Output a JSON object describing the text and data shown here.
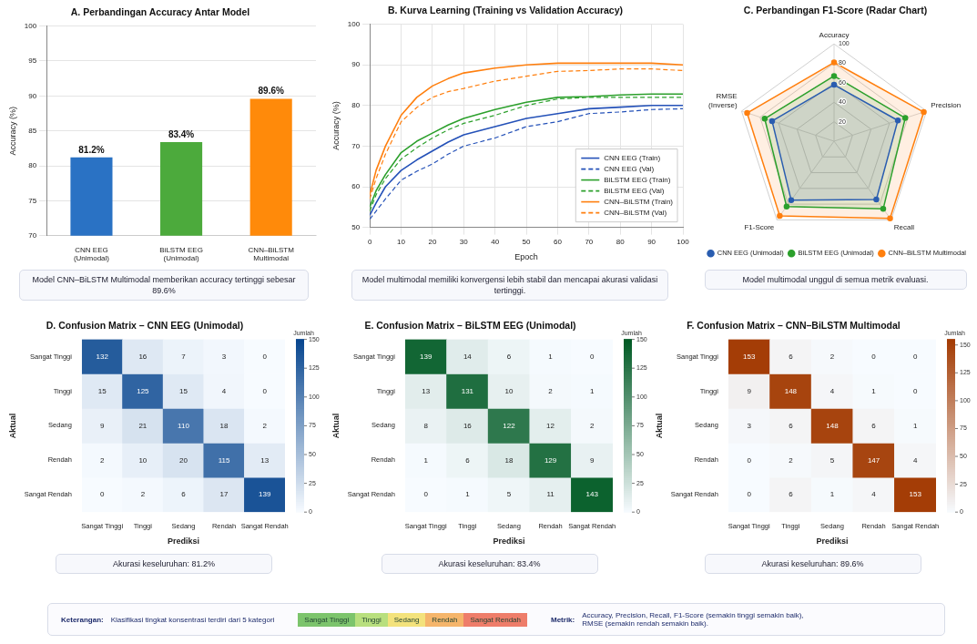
{
  "chart_data": [
    {
      "type": "bar",
      "title": "A. Perbandingan Accuracy Antar Model",
      "ylabel": "Accuracy (%)",
      "categories": [
        "CNN EEG\n(Unimodal)",
        "BiLSTM EEG\n(Unimodal)",
        "CNN–BiLSTM\nMultimodal"
      ],
      "values": [
        81.2,
        83.4,
        89.6
      ],
      "colors": [
        "#2a72c4",
        "#4caa3c",
        "#ff8a0a"
      ],
      "value_labels": [
        "81.2%",
        "83.4%",
        "89.6%"
      ],
      "ylim": [
        70,
        100
      ],
      "yticks": [
        70,
        75,
        80,
        85,
        90,
        95,
        100
      ],
      "grid": "y",
      "annotations": [
        "Model CNN–BiLSTM Multimodal memberikan accuracy tertinggi sebesar 89.6%"
      ]
    },
    {
      "type": "line",
      "title": "B. Kurva Learning (Training vs Validation Accuracy)",
      "xlabel": "Epoch",
      "ylabel": "Accuracy (%)",
      "x": [
        0,
        2,
        5,
        10,
        15,
        20,
        25,
        30,
        40,
        50,
        60,
        70,
        80,
        90,
        100
      ],
      "series": [
        {
          "name": "CNN EEG (Train)",
          "color": "#2451b8",
          "line_style": "solid",
          "values": [
            53,
            56,
            60,
            64,
            66.6,
            68.8,
            71,
            72.8,
            74.8,
            76.8,
            78,
            79.2,
            79.6,
            80,
            80
          ]
        },
        {
          "name": "CNN EEG (Val)",
          "color": "#2451b8",
          "line_style": "dashed",
          "values": [
            52,
            54,
            57,
            61.6,
            63.8,
            65.6,
            68,
            70,
            72,
            74.8,
            76,
            78,
            78.4,
            79,
            79.2
          ]
        },
        {
          "name": "BiLSTM EEG (Train)",
          "color": "#2ca02c",
          "line_style": "solid",
          "values": [
            55,
            59,
            63,
            68.4,
            71.2,
            73.2,
            75.2,
            76.8,
            79,
            80.8,
            82,
            82.2,
            82.6,
            82.8,
            82.8
          ]
        },
        {
          "name": "BiLSTM EEG (Val)",
          "color": "#2ca02c",
          "line_style": "dashed",
          "values": [
            54,
            58,
            62,
            66.8,
            69.6,
            72,
            74,
            75.6,
            77.6,
            80,
            81.6,
            82,
            82,
            82,
            82
          ]
        },
        {
          "name": "CNN–BiLSTM (Train)",
          "color": "#ff7f0e",
          "line_style": "solid",
          "values": [
            58,
            64,
            70,
            77.6,
            82,
            84.8,
            86.6,
            88,
            89.2,
            90,
            90.4,
            90.4,
            90.4,
            90.4,
            90
          ]
        },
        {
          "name": "CNN–BiLSTM (Val)",
          "color": "#ff7f0e",
          "line_style": "dashed",
          "values": [
            57,
            62,
            68,
            76,
            79.5,
            82,
            83.4,
            84.2,
            86,
            87.2,
            88.4,
            88.6,
            89,
            89,
            88.6
          ]
        }
      ],
      "xlim": [
        0,
        100
      ],
      "xticks": [
        0,
        10,
        20,
        30,
        40,
        50,
        60,
        70,
        80,
        90,
        100
      ],
      "ylim": [
        50,
        100
      ],
      "yticks": [
        50,
        60,
        70,
        80,
        90,
        100
      ],
      "grid": true,
      "legend": "bottom right",
      "annotations": [
        "Model multimodal memiliki konvergensi lebih stabil dan mencapai akurasi validasi tertinggi."
      ]
    },
    {
      "type": "radar",
      "title": "C. Perbandingan F1-Score (Radar Chart)",
      "categories": [
        "Accuracy",
        "Precision",
        "Recall",
        "F1-Score",
        "RMSE\n(Inverse)"
      ],
      "series": [
        {
          "name": "CNN EEG (Unimodal)",
          "color": "#2a5db0",
          "values": [
            58,
            69,
            74,
            75,
            67
          ]
        },
        {
          "name": "BiLSTM EEG (Unimodal)",
          "color": "#2ca02c",
          "values": [
            67,
            77,
            86,
            83,
            75
          ]
        },
        {
          "name": "CNN–BiLSTM Multimodal",
          "color": "#ff7f0e",
          "values": [
            81,
            97,
            98,
            95,
            94
          ]
        }
      ],
      "ylim": [
        0,
        100
      ],
      "yticks": [
        20,
        40,
        60,
        80,
        100
      ],
      "grid": true,
      "marker": "circle",
      "legend": "bottom right",
      "annotations": [
        "Model multimodal unggul di semua metrik evaluasi."
      ]
    },
    {
      "type": "heatmap",
      "title": "D. Confusion Matrix – CNN EEG (Unimodal)",
      "xlabel": "Prediksi",
      "ylabel": "Aktual",
      "clabel": "Jumlah",
      "categories": [
        "Sangat Tinggi",
        "Tinggi",
        "Sedang",
        "Rendah",
        "Sangat Rendah"
      ],
      "y_categories": [
        "Sangat Tinggi",
        "Tinggi",
        "Sedang",
        "Rendah",
        "Sangat Rendah"
      ],
      "cells": [
        [
          132,
          16,
          7,
          3,
          0
        ],
        [
          15,
          125,
          15,
          4,
          0
        ],
        [
          9,
          21,
          110,
          18,
          2
        ],
        [
          2,
          10,
          20,
          115,
          13
        ],
        [
          0,
          2,
          6,
          17,
          139
        ]
      ],
      "clim": [
        0,
        150
      ],
      "cticks": [
        0,
        25,
        50,
        75,
        100,
        125,
        150
      ],
      "color": "#08468f",
      "data_labels": true,
      "annotations": [
        "Akurasi keseluruhan: 81.2%"
      ]
    },
    {
      "type": "heatmap",
      "title": "E. Confusion Matrix – BiLSTM EEG (Unimodal)",
      "xlabel": "Prediksi",
      "ylabel": "Aktual",
      "clabel": "Jumlah",
      "categories": [
        "Sangat Tinggi",
        "Tinggi",
        "Sedang",
        "Rendah",
        "Sangat Rendah"
      ],
      "y_categories": [
        "Sangat Tinggi",
        "Tinggi",
        "Sedang",
        "Rendah",
        "Sangat Rendah"
      ],
      "cells": [
        [
          139,
          14,
          6,
          1,
          0
        ],
        [
          13,
          131,
          10,
          2,
          1
        ],
        [
          8,
          16,
          122,
          12,
          2
        ],
        [
          1,
          6,
          18,
          129,
          9
        ],
        [
          0,
          1,
          5,
          11,
          143
        ]
      ],
      "clim": [
        0,
        150
      ],
      "cticks": [
        0,
        25,
        50,
        75,
        100,
        125,
        150
      ],
      "color": "#005a24",
      "data_labels": true,
      "annotations": [
        "Akurasi keseluruhan: 83.4%"
      ]
    },
    {
      "type": "heatmap",
      "title": "F. Confusion Matrix – CNN–BiLSTM Multimodal",
      "xlabel": "Prediksi",
      "ylabel": "Aktual",
      "clabel": "Jumlah",
      "categories": [
        "Sangat Tinggi",
        "Tinggi",
        "Sedang",
        "Rendah",
        "Sangat Rendah"
      ],
      "y_categories": [
        "Sangat Tinggi",
        "Tinggi",
        "Sedang",
        "Rendah",
        "Sangat Rendah"
      ],
      "cells": [
        [
          153,
          6,
          2,
          0,
          0
        ],
        [
          9,
          148,
          4,
          1,
          0
        ],
        [
          3,
          6,
          148,
          6,
          1
        ],
        [
          0,
          2,
          5,
          147,
          4
        ],
        [
          0,
          6,
          1,
          4,
          153
        ]
      ],
      "clim": [
        0,
        155
      ],
      "cticks": [
        0,
        25,
        50,
        75,
        100,
        125,
        150
      ],
      "color": "#a33b03",
      "data_labels": true,
      "annotations": [
        "Akurasi keseluruhan: 89.6%"
      ]
    },
    {
      "type": "other",
      "categories": [
        "Sangat Tinggi",
        "Tinggi",
        "Sedang",
        "Rendah",
        "Sangat Rendah"
      ],
      "colors": [
        "#7cc46c",
        "#b8df7e",
        "#f3e27c",
        "#f5b56b",
        "#ee7d6a"
      ],
      "annotations": [
        "Keterangan:",
        "Klasifikasi tingkat konsentrasi terdiri dari 5 kategori",
        "Metrik:",
        "Accuracy, Precision, Recall, F1-Score (semakin tinggi semakin baik),",
        "RMSE (semakin rendah semakin baik)."
      ]
    }
  ]
}
